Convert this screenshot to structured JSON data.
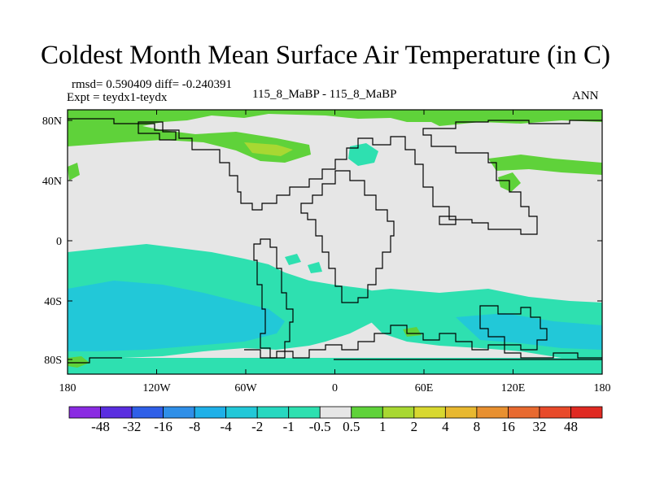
{
  "title": "Coldest Month Mean Surface Air Temperature (in C)",
  "stats_line": "rmsd= 0.590409  diff= -0.240391",
  "expt_line": "Expt = teydx1-teydx",
  "center_label": "115_8_MaBP - 115_8_MaBP",
  "season_label": "ANN",
  "axes": {
    "x_ticks": [
      "180",
      "120W",
      "60W",
      "0",
      "60E",
      "120E",
      "180"
    ],
    "y_ticks": [
      "80N",
      "40N",
      "0",
      "40S",
      "80S"
    ]
  },
  "colorbar": {
    "labels": [
      "-48",
      "-32",
      "-16",
      "-8",
      "-4",
      "-2",
      "-1",
      "-0.5",
      "0.5",
      "1",
      "2",
      "4",
      "8",
      "16",
      "32",
      "48"
    ],
    "colors": [
      "#8a2be2",
      "#5a2ee0",
      "#2f5fe8",
      "#2f8fe8",
      "#1fb0e8",
      "#22c8d8",
      "#27d8c0",
      "#2ee0b0",
      "#e6e6e6",
      "#5fd23a",
      "#a8d832",
      "#d8d830",
      "#e8b830",
      "#e89030",
      "#e86a30",
      "#e84a2a",
      "#e02a22"
    ]
  },
  "colors": {
    "land_neutral": "#e6e6e6",
    "cool_light": "#2ee0b0",
    "cool_mid": "#22c8d8",
    "warm_light": "#5fd23a",
    "warm_mid": "#a8d832"
  }
}
